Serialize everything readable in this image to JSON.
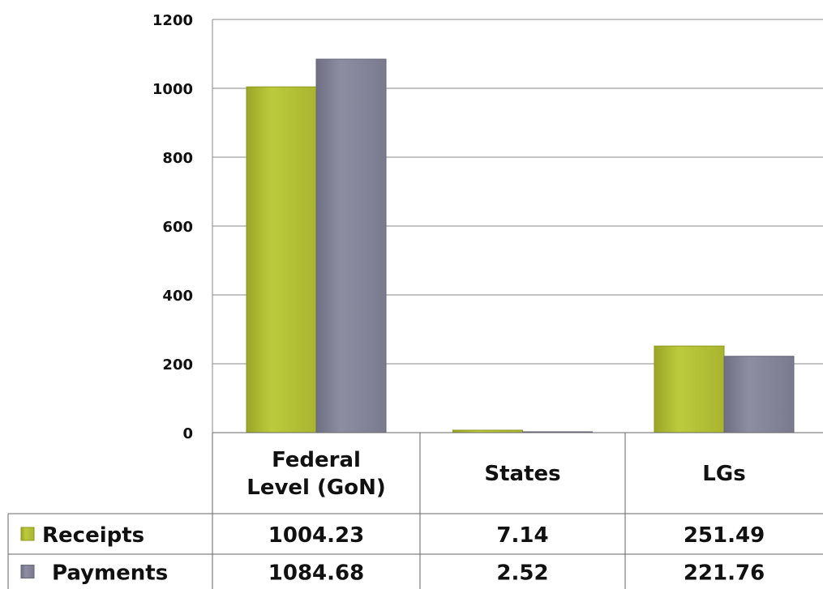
{
  "chart_data": {
    "type": "bar",
    "categories": [
      [
        "Federal",
        "Level (GoN)"
      ],
      [
        "States"
      ],
      [
        "LGs"
      ]
    ],
    "series": [
      {
        "name": "Receipts",
        "values": [
          1004.23,
          7.14,
          251.49
        ],
        "value_labels": [
          "1004.23",
          "7.14",
          "251.49"
        ],
        "color": "#b5c235"
      },
      {
        "name": "Payments",
        "values": [
          1084.68,
          2.52,
          221.76
        ],
        "value_labels": [
          "1084.68",
          "2.52",
          "221.76"
        ],
        "color": "#85859a"
      }
    ],
    "yticks": [
      "0",
      "200",
      "400",
      "600",
      "800",
      "1000",
      "1200"
    ],
    "ylim": [
      0,
      1200
    ],
    "grid": true,
    "legend": "data-table-left"
  }
}
